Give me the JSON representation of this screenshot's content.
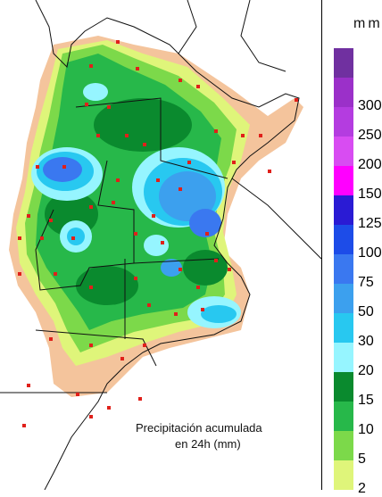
{
  "caption": {
    "line1": "Precipitación acumulada",
    "line2": "en 24h (mm)"
  },
  "legend": {
    "title": "mm",
    "levels": [
      {
        "label": "",
        "color": "#7030a0"
      },
      {
        "label": "300",
        "color": "#9b30c9"
      },
      {
        "label": "250",
        "color": "#b43ce0"
      },
      {
        "label": "200",
        "color": "#d84cf2"
      },
      {
        "label": "150",
        "color": "#ff00ff"
      },
      {
        "label": "125",
        "color": "#2a1bd4"
      },
      {
        "label": "100",
        "color": "#1d4ce8"
      },
      {
        "label": "75",
        "color": "#3a78f0"
      },
      {
        "label": "50",
        "color": "#3ca0ee"
      },
      {
        "label": "30",
        "color": "#28c8f0"
      },
      {
        "label": "20",
        "color": "#96f5ff"
      },
      {
        "label": "15",
        "color": "#0a8a2e"
      },
      {
        "label": "10",
        "color": "#27b84a"
      },
      {
        "label": "5",
        "color": "#7cd94a"
      },
      {
        "label": "2",
        "color": "#dff57a"
      }
    ]
  },
  "palette": {
    "trace": "#f4c49c",
    "light": "#dff57a",
    "low": "#7cd94a",
    "mid": "#27b84a",
    "high": "#0a8a2e",
    "pale_cyan": "#96f5ff",
    "cyan": "#28c8f0",
    "light_blue": "#3ca0ee",
    "blue": "#3a78f0",
    "station": "#e0201a"
  }
}
